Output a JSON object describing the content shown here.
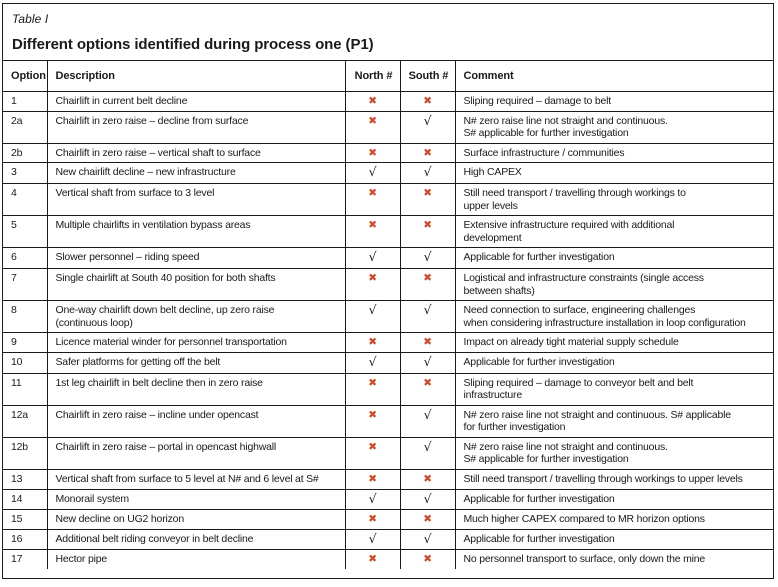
{
  "header": {
    "caption": "Table I",
    "title": "Different options identified during process one (P1)"
  },
  "columns": [
    "Option",
    "Description",
    "North #",
    "South #",
    "Comment"
  ],
  "marks": {
    "check": "√",
    "cross": "✖"
  },
  "colors": {
    "cross": "#d2492a",
    "check": "#1a1a1a",
    "border": "#1a1a1a"
  },
  "rows": [
    {
      "option": "1",
      "description": "Chairlift in current belt decline",
      "north": "cross",
      "south": "cross",
      "comment": "Sliping required – damage to belt"
    },
    {
      "option": "2a",
      "description": "Chairlift in zero raise – decline from surface",
      "north": "cross",
      "south": "check",
      "comment": "N# zero raise line not straight and continuous.\nS# applicable for further investigation"
    },
    {
      "option": "2b",
      "description": "Chairlift in zero raise – vertical shaft to surface",
      "north": "cross",
      "south": "cross",
      "comment": "Surface infrastructure / communities"
    },
    {
      "option": "3",
      "description": "New chairlift decline – new infrastructure",
      "north": "check",
      "south": "check",
      "comment": "High CAPEX"
    },
    {
      "option": "4",
      "description": "Vertical shaft from surface to 3 level",
      "north": "cross",
      "south": "cross",
      "comment": "Still need transport / travelling through workings to\nupper levels"
    },
    {
      "option": "5",
      "description": "Multiple chairlifts in ventilation bypass areas",
      "north": "cross",
      "south": "cross",
      "comment": "Extensive infrastructure required with additional\ndevelopment"
    },
    {
      "option": "6",
      "description": "Slower personnel – riding speed",
      "north": "check",
      "south": "check",
      "comment": "Applicable for further investigation"
    },
    {
      "option": "7",
      "description": "Single chairlift at South 40 position for both shafts",
      "north": "cross",
      "south": "cross",
      "comment": "Logistical and infrastructure constraints (single access\nbetween shafts)"
    },
    {
      "option": "8",
      "description": "One-way chairlift down belt decline, up zero raise\n(continuous loop)",
      "north": "check",
      "south": "check",
      "comment": "Need connection to surface, engineering challenges\nwhen considering infrastructure installation in loop configuration"
    },
    {
      "option": "9",
      "description": "Licence material winder for personnel transportation",
      "north": "cross",
      "south": "cross",
      "comment": "Impact on already tight material supply schedule"
    },
    {
      "option": "10",
      "description": "Safer platforms for getting off the belt",
      "north": "check",
      "south": "check",
      "comment": "Applicable for further investigation"
    },
    {
      "option": "11",
      "description": "1st leg chairlift in belt decline then in zero raise",
      "north": "cross",
      "south": "cross",
      "comment": "Sliping required – damage to conveyor belt and belt\ninfrastructure"
    },
    {
      "option": "12a",
      "description": "Chairlift in zero raise – incline under opencast",
      "north": "cross",
      "south": "check",
      "comment": "N# zero raise line not straight and continuous. S# applicable\nfor further investigation"
    },
    {
      "option": "12b",
      "description": "Chairlift in zero raise – portal in opencast highwall",
      "north": "cross",
      "south": "check",
      "comment": "N# zero raise line not straight and continuous.\nS# applicable for further investigation"
    },
    {
      "option": "13",
      "description": "Vertical shaft from surface to 5 level at N# and 6 level at S#",
      "north": "cross",
      "south": "cross",
      "comment": "Still need transport / travelling through workings to upper levels"
    },
    {
      "option": "14",
      "description": "Monorail system",
      "north": "check",
      "south": "check",
      "comment": "Applicable for further investigation"
    },
    {
      "option": "15",
      "description": "New decline on UG2 horizon",
      "north": "cross",
      "south": "cross",
      "comment": "Much higher CAPEX compared to MR horizon options"
    },
    {
      "option": "16",
      "description": "Additional belt riding conveyor in belt decline",
      "north": "check",
      "south": "check",
      "comment": "Applicable for further investigation"
    },
    {
      "option": "17",
      "description": "Hector pipe",
      "north": "cross",
      "south": "cross",
      "comment": "No personnel transport to surface, only down the mine"
    }
  ]
}
